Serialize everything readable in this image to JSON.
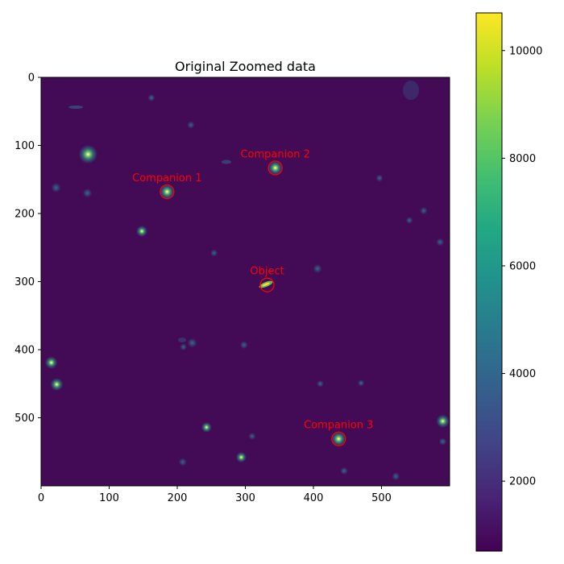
{
  "chart_data": {
    "type": "heatmap",
    "title": "Original Zoomed data",
    "xlabel": "",
    "ylabel": "",
    "xlim": [
      0,
      600
    ],
    "ylim": [
      600,
      0
    ],
    "x_ticks": [
      0,
      100,
      200,
      300,
      400,
      500
    ],
    "y_ticks": [
      0,
      100,
      200,
      300,
      400,
      500
    ],
    "colorbar": {
      "min": 700,
      "max": 10700,
      "ticks": [
        2000,
        4000,
        6000,
        8000,
        10000
      ],
      "colormap": "viridis"
    },
    "background_color": "#430b56",
    "annotations": [
      {
        "label": "Companion 1",
        "x": 185,
        "y": 168
      },
      {
        "label": "Companion 2",
        "x": 344,
        "y": 133
      },
      {
        "label": "Object",
        "x": 332,
        "y": 305
      },
      {
        "label": "Companion 3",
        "x": 437,
        "y": 531
      }
    ],
    "sources": [
      {
        "x": 69,
        "y": 113,
        "intensity": 10200
      },
      {
        "x": 185,
        "y": 168,
        "intensity": 8000
      },
      {
        "x": 344,
        "y": 133,
        "intensity": 7500
      },
      {
        "x": 437,
        "y": 531,
        "intensity": 7800
      },
      {
        "x": 15,
        "y": 419,
        "intensity": 6000
      },
      {
        "x": 23,
        "y": 451,
        "intensity": 6200
      },
      {
        "x": 590,
        "y": 505,
        "intensity": 6500
      },
      {
        "x": 148,
        "y": 226,
        "intensity": 5200
      },
      {
        "x": 294,
        "y": 558,
        "intensity": 4800
      },
      {
        "x": 243,
        "y": 514,
        "intensity": 4600
      },
      {
        "x": 22,
        "y": 162,
        "intensity": 4200
      },
      {
        "x": 222,
        "y": 390,
        "intensity": 4000
      },
      {
        "x": 68,
        "y": 170,
        "intensity": 3800
      },
      {
        "x": 406,
        "y": 281,
        "intensity": 3600
      },
      {
        "x": 208,
        "y": 565,
        "intensity": 3000
      },
      {
        "x": 521,
        "y": 586,
        "intensity": 3000
      },
      {
        "x": 298,
        "y": 393,
        "intensity": 3000
      },
      {
        "x": 586,
        "y": 242,
        "intensity": 3000
      },
      {
        "x": 562,
        "y": 196,
        "intensity": 2800
      },
      {
        "x": 445,
        "y": 578,
        "intensity": 2800
      },
      {
        "x": 590,
        "y": 535,
        "intensity": 2800
      },
      {
        "x": 220,
        "y": 70,
        "intensity": 2600
      },
      {
        "x": 162,
        "y": 30,
        "intensity": 2600
      },
      {
        "x": 310,
        "y": 527,
        "intensity": 2600
      },
      {
        "x": 497,
        "y": 148,
        "intensity": 2600
      },
      {
        "x": 254,
        "y": 258,
        "intensity": 2500
      },
      {
        "x": 209,
        "y": 396,
        "intensity": 2500
      },
      {
        "x": 541,
        "y": 210,
        "intensity": 2400
      },
      {
        "x": 410,
        "y": 450,
        "intensity": 2400
      },
      {
        "x": 470,
        "y": 449,
        "intensity": 2400
      }
    ]
  }
}
